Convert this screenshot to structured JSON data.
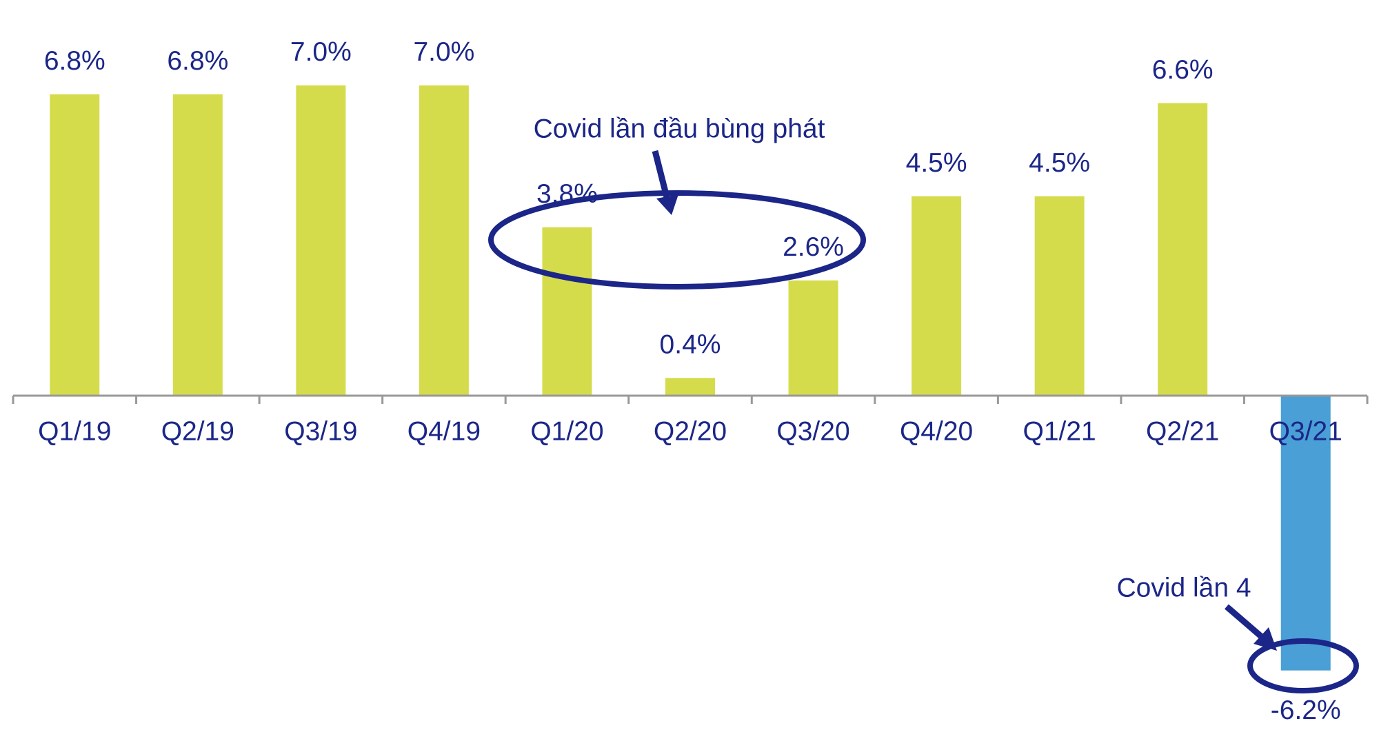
{
  "chart_data": {
    "type": "bar",
    "categories": [
      "Q1/19",
      "Q2/19",
      "Q3/19",
      "Q4/19",
      "Q1/20",
      "Q2/20",
      "Q3/20",
      "Q4/20",
      "Q1/21",
      "Q2/21",
      "Q3/21"
    ],
    "values": [
      6.8,
      6.8,
      7.0,
      7.0,
      3.8,
      0.4,
      2.6,
      4.5,
      4.5,
      6.6,
      -6.2
    ],
    "value_labels": [
      "6.8%",
      "6.8%",
      "7.0%",
      "7.0%",
      "3.8%",
      "0.4%",
      "2.6%",
      "4.5%",
      "4.5%",
      "6.6%",
      "-6.2%"
    ],
    "colors": [
      "#d4dc4b",
      "#d4dc4b",
      "#d4dc4b",
      "#d4dc4b",
      "#d4dc4b",
      "#d4dc4b",
      "#d4dc4b",
      "#d4dc4b",
      "#d4dc4b",
      "#d4dc4b",
      "#4a9fd6"
    ],
    "annotations": [
      "Covid lần đầu bùng phát",
      "Covid lần 4"
    ]
  }
}
